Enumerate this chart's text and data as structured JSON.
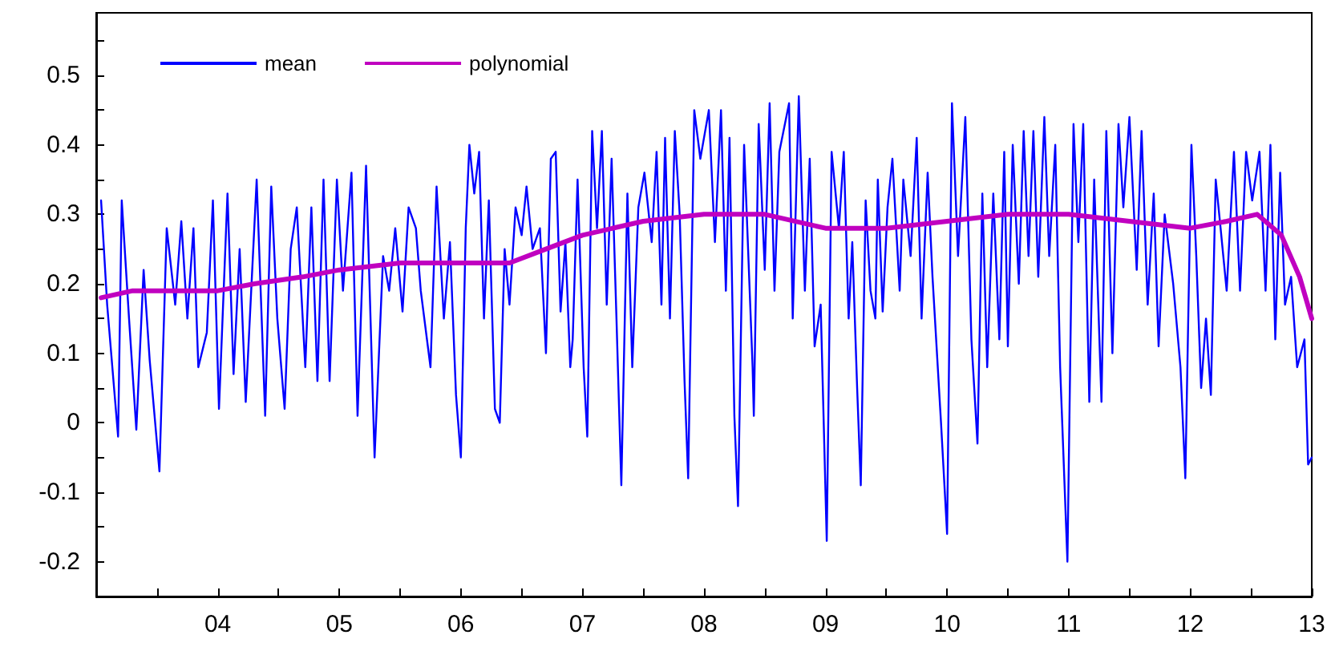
{
  "chart_data": {
    "type": "line",
    "xlim": [
      2003,
      2013
    ],
    "ylim": [
      -0.25,
      0.59
    ],
    "xticks": [
      {
        "value": 2003.5,
        "label": null
      },
      {
        "value": 2004,
        "label": "04"
      },
      {
        "value": 2004.5,
        "label": null
      },
      {
        "value": 2005,
        "label": "05"
      },
      {
        "value": 2005.5,
        "label": null
      },
      {
        "value": 2006,
        "label": "06"
      },
      {
        "value": 2006.5,
        "label": null
      },
      {
        "value": 2007,
        "label": "07"
      },
      {
        "value": 2007.5,
        "label": null
      },
      {
        "value": 2008,
        "label": "08"
      },
      {
        "value": 2008.5,
        "label": null
      },
      {
        "value": 2009,
        "label": "09"
      },
      {
        "value": 2009.5,
        "label": null
      },
      {
        "value": 2010,
        "label": "10"
      },
      {
        "value": 2010.5,
        "label": null
      },
      {
        "value": 2011,
        "label": "11"
      },
      {
        "value": 2011.5,
        "label": null
      },
      {
        "value": 2012,
        "label": "12"
      },
      {
        "value": 2012.5,
        "label": null
      },
      {
        "value": 2013,
        "label": "13"
      }
    ],
    "yticks": [
      -0.2,
      {
        "value": -0.15,
        "label": null
      },
      -0.1,
      {
        "value": -0.05,
        "label": null
      },
      0,
      {
        "value": 0.05,
        "label": null
      },
      0.1,
      {
        "value": 0.15,
        "label": null
      },
      0.2,
      {
        "value": 0.25,
        "label": null
      },
      0.3,
      {
        "value": 0.35,
        "label": null
      },
      0.4,
      {
        "value": 0.45,
        "label": null
      },
      0.5,
      {
        "value": 0.55,
        "label": null
      }
    ],
    "grid": false,
    "legend": "top left",
    "marker": "none",
    "line_style": "solid",
    "series": [
      {
        "name": "mean",
        "color": "#0000ff",
        "x": [
          2003.04,
          2003.09,
          2003.18,
          2003.21,
          2003.27,
          2003.33,
          2003.39,
          2003.44,
          2003.52,
          2003.58,
          2003.65,
          2003.7,
          2003.75,
          2003.8,
          2003.84,
          2003.91,
          2003.96,
          2004.01,
          2004.08,
          2004.13,
          2004.18,
          2004.23,
          2004.32,
          2004.39,
          2004.44,
          2004.49,
          2004.55,
          2004.6,
          2004.65,
          2004.72,
          2004.77,
          2004.82,
          2004.87,
          2004.92,
          2004.98,
          2005.03,
          2005.1,
          2005.15,
          2005.22,
          2005.29,
          2005.36,
          2005.41,
          2005.46,
          2005.52,
          2005.57,
          2005.63,
          2005.67,
          2005.75,
          2005.8,
          2005.86,
          2005.91,
          2005.96,
          2006.0,
          2006.04,
          2006.07,
          2006.11,
          2006.15,
          2006.19,
          2006.23,
          2006.28,
          2006.32,
          2006.36,
          2006.4,
          2006.45,
          2006.5,
          2006.54,
          2006.59,
          2006.65,
          2006.7,
          2006.74,
          2006.78,
          2006.82,
          2006.86,
          2006.9,
          2006.92,
          2006.96,
          2007.01,
          2007.04,
          2007.08,
          2007.12,
          2007.16,
          2007.2,
          2007.24,
          2007.28,
          2007.32,
          2007.37,
          2007.41,
          2007.46,
          2007.51,
          2007.57,
          2007.61,
          2007.65,
          2007.68,
          2007.72,
          2007.76,
          2007.8,
          2007.84,
          2007.87,
          2007.92,
          2007.97,
          2008.04,
          2008.09,
          2008.14,
          2008.18,
          2008.21,
          2008.25,
          2008.28,
          2008.33,
          2008.4,
          2008.41,
          2008.45,
          2008.5,
          2008.54,
          2008.58,
          2008.62,
          2008.7,
          2008.73,
          2008.78,
          2008.83,
          2008.87,
          2008.91,
          2008.96,
          2009.01,
          2009.05,
          2009.11,
          2009.15,
          2009.19,
          2009.22,
          2009.26,
          2009.29,
          2009.33,
          2009.37,
          2009.41,
          2009.43,
          2009.47,
          2009.51,
          2009.55,
          2009.61,
          2009.64,
          2009.7,
          2009.75,
          2009.79,
          2009.84,
          2009.88,
          2009.95,
          2010.0,
          2010.04,
          2010.09,
          2010.15,
          2010.2,
          2010.25,
          2010.29,
          2010.33,
          2010.38,
          2010.43,
          2010.47,
          2010.5,
          2010.54,
          2010.59,
          2010.63,
          2010.67,
          2010.71,
          2010.75,
          2010.8,
          2010.84,
          2010.89,
          2010.93,
          2010.99,
          2011.04,
          2011.08,
          2011.12,
          2011.17,
          2011.21,
          2011.27,
          2011.31,
          2011.36,
          2011.41,
          2011.45,
          2011.5,
          2011.56,
          2011.6,
          2011.65,
          2011.7,
          2011.74,
          2011.79,
          2011.86,
          2011.92,
          2011.96,
          2012.01,
          2012.05,
          2012.09,
          2012.13,
          2012.17,
          2012.21,
          2012.25,
          2012.3,
          2012.36,
          2012.41,
          2012.46,
          2012.51,
          2012.57,
          2012.62,
          2012.66,
          2012.7,
          2012.74,
          2012.78,
          2012.83,
          2012.88,
          2012.94,
          2012.97,
          2013.0
        ],
        "values": [
          0.32,
          0.17,
          -0.02,
          0.32,
          0.15,
          -0.01,
          0.22,
          0.09,
          -0.07,
          0.28,
          0.17,
          0.29,
          0.15,
          0.28,
          0.08,
          0.13,
          0.32,
          0.02,
          0.33,
          0.07,
          0.25,
          0.03,
          0.35,
          0.01,
          0.34,
          0.15,
          0.02,
          0.25,
          0.31,
          0.08,
          0.31,
          0.06,
          0.35,
          0.06,
          0.35,
          0.19,
          0.36,
          0.01,
          0.37,
          -0.05,
          0.24,
          0.19,
          0.28,
          0.16,
          0.31,
          0.28,
          0.19,
          0.08,
          0.34,
          0.15,
          0.26,
          0.04,
          -0.05,
          0.28,
          0.4,
          0.33,
          0.39,
          0.15,
          0.32,
          0.02,
          0.0,
          0.25,
          0.17,
          0.31,
          0.27,
          0.34,
          0.25,
          0.28,
          0.1,
          0.38,
          0.39,
          0.16,
          0.26,
          0.08,
          0.12,
          0.35,
          0.08,
          -0.02,
          0.42,
          0.28,
          0.42,
          0.17,
          0.38,
          0.15,
          -0.09,
          0.33,
          0.08,
          0.31,
          0.36,
          0.26,
          0.39,
          0.17,
          0.41,
          0.15,
          0.42,
          0.3,
          0.06,
          -0.08,
          0.45,
          0.38,
          0.45,
          0.26,
          0.45,
          0.19,
          0.41,
          0.01,
          -0.12,
          0.4,
          0.08,
          0.01,
          0.43,
          0.22,
          0.46,
          0.19,
          0.39,
          0.46,
          0.15,
          0.47,
          0.19,
          0.38,
          0.11,
          0.17,
          -0.17,
          0.39,
          0.28,
          0.39,
          0.15,
          0.26,
          0.05,
          -0.09,
          0.32,
          0.19,
          0.15,
          0.35,
          0.16,
          0.31,
          0.38,
          0.19,
          0.35,
          0.24,
          0.41,
          0.15,
          0.36,
          0.21,
          0.0,
          -0.16,
          0.46,
          0.24,
          0.44,
          0.12,
          -0.03,
          0.33,
          0.08,
          0.33,
          0.12,
          0.39,
          0.11,
          0.4,
          0.2,
          0.42,
          0.24,
          0.42,
          0.21,
          0.44,
          0.24,
          0.4,
          0.08,
          -0.2,
          0.43,
          0.26,
          0.43,
          0.03,
          0.35,
          0.03,
          0.42,
          0.1,
          0.43,
          0.31,
          0.44,
          0.22,
          0.42,
          0.17,
          0.33,
          0.11,
          0.3,
          0.2,
          0.08,
          -0.08,
          0.4,
          0.24,
          0.05,
          0.15,
          0.04,
          0.35,
          0.28,
          0.19,
          0.39,
          0.19,
          0.39,
          0.32,
          0.39,
          0.19,
          0.4,
          0.12,
          0.36,
          0.17,
          0.21,
          0.08,
          0.12,
          -0.06,
          -0.05
        ]
      },
      {
        "name": "polynomial",
        "color": "#c000c0",
        "x": [
          2003.04,
          2003.3,
          2003.7,
          2004,
          2004.3,
          2004.7,
          2005,
          2005.5,
          2006,
          2006.4,
          2006.7,
          2007,
          2007.5,
          2008,
          2008.5,
          2009,
          2009.5,
          2010,
          2010.5,
          2011,
          2011.5,
          2012,
          2012.3,
          2012.55,
          2012.75,
          2012.9,
          2013
        ],
        "values": [
          0.18,
          0.19,
          0.19,
          0.19,
          0.2,
          0.21,
          0.22,
          0.23,
          0.23,
          0.23,
          0.25,
          0.27,
          0.29,
          0.3,
          0.3,
          0.28,
          0.28,
          0.29,
          0.3,
          0.3,
          0.29,
          0.28,
          0.29,
          0.3,
          0.27,
          0.21,
          0.15
        ]
      }
    ]
  }
}
